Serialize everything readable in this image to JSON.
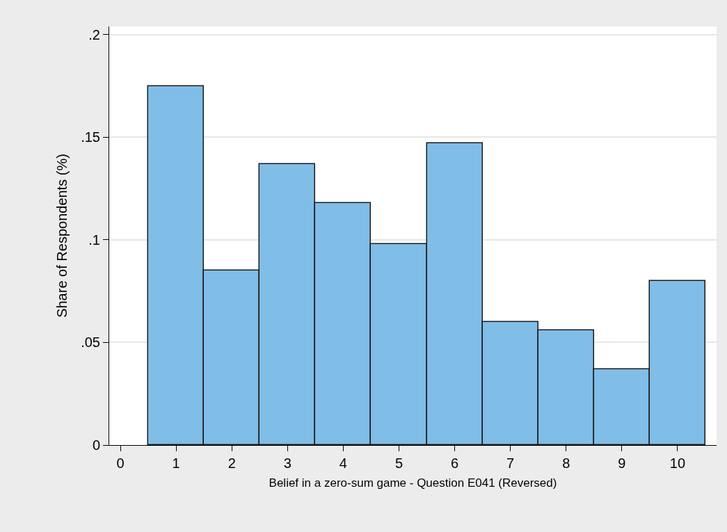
{
  "chart_data": {
    "type": "histogram",
    "xlabel": "Belief in a zero-sum game - Question E041 (Reversed)",
    "ylabel": "Share of Respondents (%)",
    "bins": [
      0.5,
      1.5,
      2.5,
      3.5,
      4.5,
      5.5,
      6.5,
      7.5,
      8.5,
      9.5,
      10.5
    ],
    "values": [
      0.175,
      0.085,
      0.137,
      0.118,
      0.098,
      0.147,
      0.06,
      0.056,
      0.037,
      0.08
    ],
    "color": "#80bde7",
    "xlim": [
      -0.2,
      10.7
    ],
    "xticks": [
      0,
      1,
      2,
      3,
      4,
      5,
      6,
      7,
      8,
      9,
      10
    ],
    "ylim": [
      0,
      0.204
    ],
    "yticks": [
      0,
      {
        "value": 0.05,
        "label": ".05"
      },
      {
        "value": 0.1,
        "label": ".1"
      },
      {
        "value": 0.15,
        "label": ".15"
      },
      {
        "value": 0.2,
        "label": ".2"
      }
    ],
    "grid": "y"
  }
}
